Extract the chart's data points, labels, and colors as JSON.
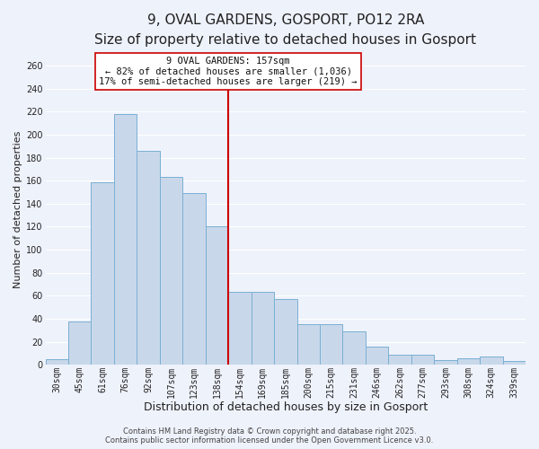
{
  "title": "9, OVAL GARDENS, GOSPORT, PO12 2RA",
  "subtitle": "Size of property relative to detached houses in Gosport",
  "xlabel": "Distribution of detached houses by size in Gosport",
  "ylabel": "Number of detached properties",
  "bar_labels": [
    "30sqm",
    "45sqm",
    "61sqm",
    "76sqm",
    "92sqm",
    "107sqm",
    "123sqm",
    "138sqm",
    "154sqm",
    "169sqm",
    "185sqm",
    "200sqm",
    "215sqm",
    "231sqm",
    "246sqm",
    "262sqm",
    "277sqm",
    "293sqm",
    "308sqm",
    "324sqm",
    "339sqm"
  ],
  "bar_values": [
    5,
    38,
    159,
    218,
    186,
    163,
    149,
    120,
    63,
    63,
    57,
    35,
    35,
    29,
    16,
    9,
    9,
    4,
    6,
    7,
    3
  ],
  "bar_color": "#c8d8ea",
  "bar_edge_color": "#7aafd4",
  "vline_color": "#cc0000",
  "annotation_title": "9 OVAL GARDENS: 157sqm",
  "annotation_line1": "← 82% of detached houses are smaller (1,036)",
  "annotation_line2": "17% of semi-detached houses are larger (219) →",
  "annotation_box_color": "#ffffff",
  "annotation_box_edge": "#cc0000",
  "ylim": [
    0,
    270
  ],
  "yticks": [
    0,
    20,
    40,
    60,
    80,
    100,
    120,
    140,
    160,
    180,
    200,
    220,
    240,
    260
  ],
  "footer1": "Contains HM Land Registry data © Crown copyright and database right 2025.",
  "footer2": "Contains public sector information licensed under the Open Government Licence v3.0.",
  "background_color": "#eef2fb",
  "grid_color": "#ffffff",
  "title_fontsize": 11,
  "subtitle_fontsize": 9,
  "xlabel_fontsize": 9,
  "ylabel_fontsize": 8,
  "tick_fontsize": 7,
  "annotation_fontsize": 7.5,
  "footer_fontsize": 6
}
